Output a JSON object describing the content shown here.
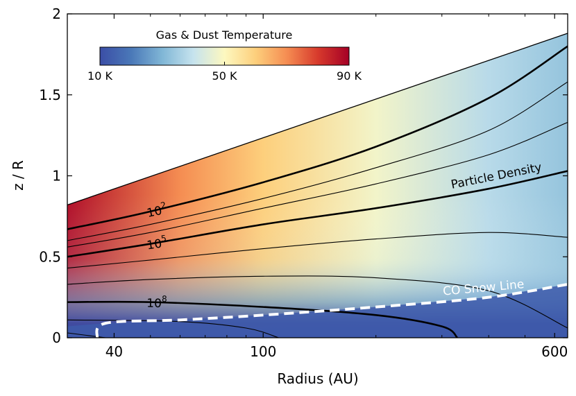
{
  "chart_data": {
    "type": "heatmap",
    "title": "",
    "xlabel": "Radius (AU)",
    "ylabel": "z / R",
    "x_scale": "log",
    "xlim": [
      30,
      650
    ],
    "ylim": [
      0,
      2
    ],
    "x_ticks": [
      {
        "value": 40,
        "label": "40"
      },
      {
        "value": 100,
        "label": "100"
      },
      {
        "value": 600,
        "label": "600"
      }
    ],
    "y_ticks": [
      {
        "value": 0,
        "label": "0"
      },
      {
        "value": 0.5,
        "label": "0.5"
      },
      {
        "value": 1,
        "label": "1"
      },
      {
        "value": 1.5,
        "label": "1.5"
      },
      {
        "value": 2,
        "label": "2"
      }
    ],
    "colorbar": {
      "title": "Gas & Dust Temperature",
      "range": [
        10,
        90
      ],
      "ticks": [
        {
          "value": 10,
          "label": "10 K"
        },
        {
          "value": 50,
          "label": "50 K"
        },
        {
          "value": 90,
          "label": "90 K"
        }
      ],
      "colors": [
        "#3b4ea6",
        "#4a78b8",
        "#80b6d6",
        "#c6e3ee",
        "#fdf8c0",
        "#fdcf7c",
        "#f58d52",
        "#d73a2c",
        "#a50026"
      ]
    },
    "disk_surface": {
      "x": [
        30,
        650
      ],
      "y": [
        0.82,
        1.88
      ]
    },
    "temperature_field": {
      "description_values": "surface temperature decreases from ~90 K at 30 AU to ~35 K at 650 AU; midplane temperature ~15 K",
      "surface_T": [
        [
          30,
          88
        ],
        [
          60,
          70
        ],
        [
          100,
          60
        ],
        [
          200,
          48
        ],
        [
          400,
          38
        ],
        [
          650,
          33
        ]
      ],
      "midplane_T": [
        [
          30,
          22
        ],
        [
          100,
          14
        ],
        [
          650,
          10
        ]
      ]
    },
    "density_contours": [
      {
        "label": "10^2",
        "bold": true,
        "points": [
          [
            30,
            0.67
          ],
          [
            50,
            0.78
          ],
          [
            100,
            0.96
          ],
          [
            200,
            1.18
          ],
          [
            400,
            1.48
          ],
          [
            650,
            1.8
          ]
        ]
      },
      {
        "label": "",
        "bold": false,
        "points": [
          [
            30,
            0.6
          ],
          [
            50,
            0.7
          ],
          [
            100,
            0.86
          ],
          [
            200,
            1.05
          ],
          [
            400,
            1.28
          ],
          [
            650,
            1.58
          ]
        ]
      },
      {
        "label": "",
        "bold": false,
        "points": [
          [
            30,
            0.56
          ],
          [
            50,
            0.65
          ],
          [
            100,
            0.8
          ],
          [
            200,
            0.95
          ],
          [
            400,
            1.13
          ],
          [
            650,
            1.33
          ]
        ]
      },
      {
        "label": "10^5",
        "bold": true,
        "points": [
          [
            30,
            0.5
          ],
          [
            50,
            0.58
          ],
          [
            100,
            0.7
          ],
          [
            200,
            0.8
          ],
          [
            400,
            0.92
          ],
          [
            650,
            1.03
          ]
        ]
      },
      {
        "label": "",
        "bold": false,
        "points": [
          [
            30,
            0.43
          ],
          [
            50,
            0.48
          ],
          [
            100,
            0.55
          ],
          [
            200,
            0.61
          ],
          [
            400,
            0.65
          ],
          [
            650,
            0.62
          ]
        ]
      },
      {
        "label": "",
        "bold": false,
        "points": [
          [
            30,
            0.33
          ],
          [
            50,
            0.36
          ],
          [
            100,
            0.38
          ],
          [
            200,
            0.37
          ],
          [
            400,
            0.29
          ],
          [
            650,
            0.06
          ]
        ]
      },
      {
        "label": "10^8",
        "bold": true,
        "points": [
          [
            30,
            0.22
          ],
          [
            50,
            0.22
          ],
          [
            100,
            0.19
          ],
          [
            200,
            0.14
          ],
          [
            300,
            0.07
          ],
          [
            330,
            0.0
          ]
        ]
      },
      {
        "label": "",
        "bold": false,
        "points": [
          [
            30,
            0.11
          ],
          [
            60,
            0.1
          ],
          [
            90,
            0.06
          ],
          [
            110,
            0.0
          ]
        ]
      },
      {
        "label": "",
        "bold": false,
        "points": [
          [
            30,
            0.03
          ],
          [
            38,
            0.0
          ]
        ]
      }
    ],
    "snow_line": {
      "label": "CO Snow Line",
      "points": [
        [
          36,
          0.0
        ],
        [
          38,
          0.09
        ],
        [
          60,
          0.11
        ],
        [
          100,
          0.14
        ],
        [
          200,
          0.19
        ],
        [
          400,
          0.25
        ],
        [
          650,
          0.33
        ]
      ]
    },
    "annotations": [
      {
        "text": "Particle Density"
      },
      {
        "text": "CO Snow Line"
      }
    ]
  }
}
